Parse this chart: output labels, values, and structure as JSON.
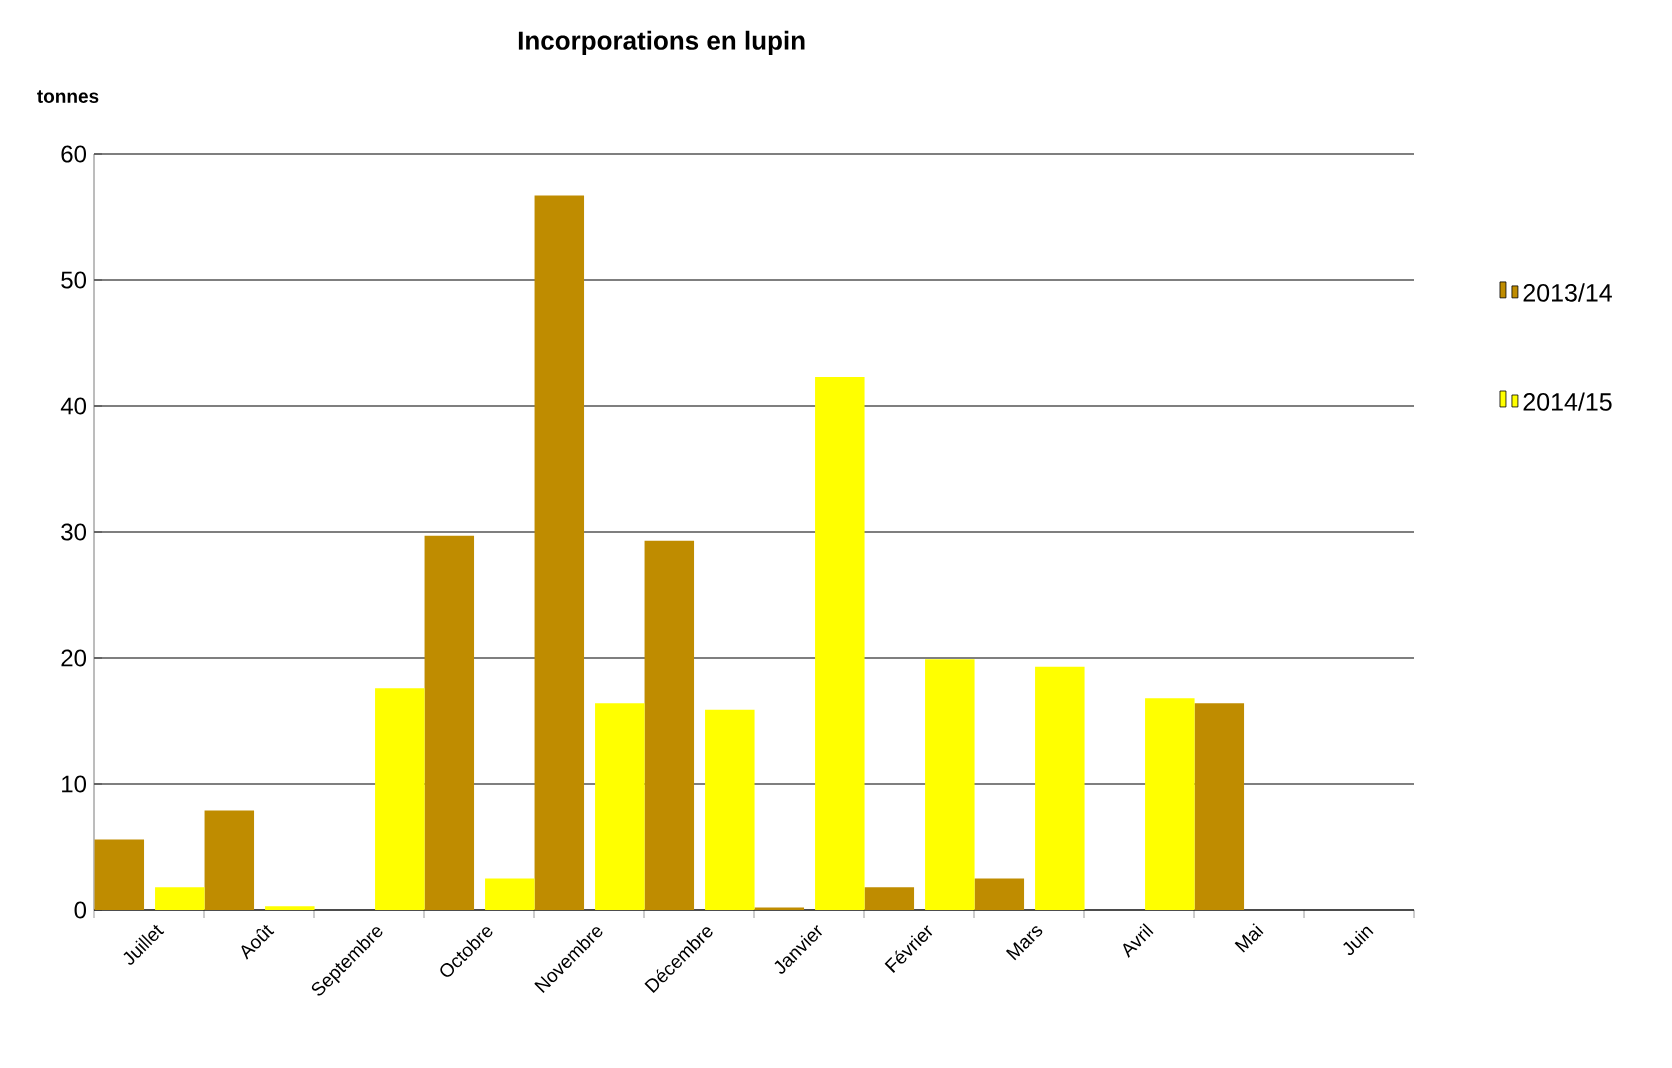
{
  "chart_data": {
    "type": "bar",
    "title": "Incorporations en lupin",
    "ylabel": "tonnes",
    "categories": [
      "Juillet",
      "Août",
      "Septembre",
      "Octobre",
      "Novembre",
      "Décembre",
      "Janvier",
      "Février",
      "Mars",
      "Avril",
      "Mai",
      "Juin"
    ],
    "series": [
      {
        "name": "2013/14",
        "color": "#bf8c00",
        "values": [
          5.6,
          7.9,
          0,
          29.7,
          56.7,
          29.3,
          0.2,
          1.8,
          2.5,
          0,
          16.4,
          0
        ]
      },
      {
        "name": "2014/15",
        "color": "#ffff00",
        "values": [
          1.8,
          0.3,
          17.6,
          2.5,
          16.4,
          15.9,
          42.3,
          19.9,
          19.3,
          16.8,
          0,
          0
        ]
      }
    ],
    "ylim": [
      0,
      60
    ],
    "yticks": [
      0,
      10,
      20,
      30,
      40,
      50,
      60
    ],
    "grid": "y",
    "legend": "right"
  }
}
